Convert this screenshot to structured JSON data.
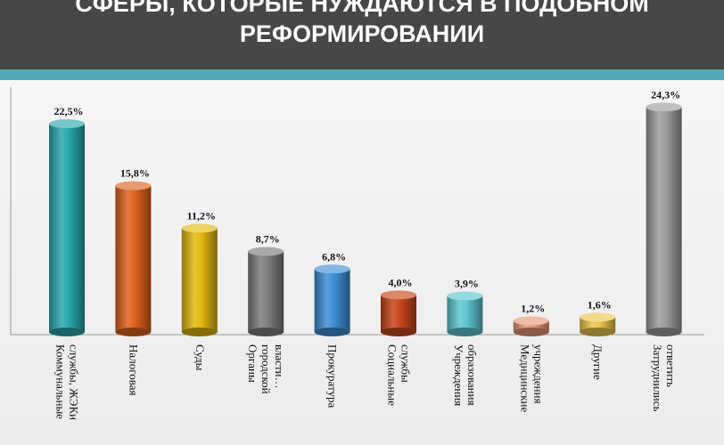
{
  "header": {
    "line1": "СФЕРЫ, КОТОРЫЕ НУЖДАЮТСЯ В ПОДОБНОМ",
    "line2": "РЕФОРМИРОВАНИИ"
  },
  "chart_data": {
    "type": "bar",
    "categories": [
      [
        "Коммунальные",
        "службы, ЖЭКи"
      ],
      [
        "Налоговая"
      ],
      [
        "Суды"
      ],
      [
        "Органы",
        "городской",
        "власти…"
      ],
      [
        "Прокуратура"
      ],
      [
        "Социальные",
        "службы"
      ],
      [
        "Учреждения",
        "образования"
      ],
      [
        "Медицинские",
        "учреждения"
      ],
      [
        "Другие"
      ],
      [
        "Затруднились",
        "ответить"
      ]
    ],
    "values": [
      22.5,
      15.8,
      11.2,
      8.7,
      6.8,
      4.0,
      3.9,
      1.2,
      1.6,
      24.3
    ],
    "value_labels": [
      "22,5%",
      "15,8%",
      "11,2%",
      "8,7%",
      "6,8%",
      "4,0%",
      "3,9%",
      "1,2%",
      "1,6%",
      "24,3%"
    ],
    "colors": [
      "#2aa9ad",
      "#e0621e",
      "#e2b80f",
      "#7d7d7d",
      "#3e8fd6",
      "#c6461a",
      "#5ec6cf",
      "#e89777",
      "#ecc64c",
      "#9c9c9c"
    ],
    "ylim": [
      0,
      25
    ],
    "grid": false,
    "legend": "none"
  }
}
